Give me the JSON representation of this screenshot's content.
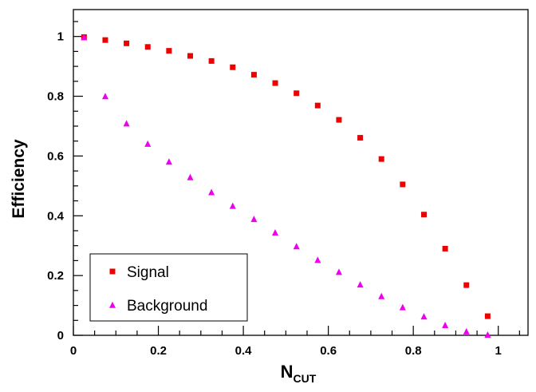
{
  "chart_data": {
    "type": "scatter",
    "xlabel_main": "N",
    "xlabel_sub": "CUT",
    "ylabel": "Efficiency",
    "xlim": [
      0,
      1.07
    ],
    "ylim": [
      0,
      1.09
    ],
    "x_ticks": [
      "0",
      "0.2",
      "0.4",
      "0.6",
      "0.8",
      "1"
    ],
    "y_ticks": [
      "0",
      "0.2",
      "0.4",
      "0.6",
      "0.8",
      "1"
    ],
    "legend_position": "bottom-left",
    "series": [
      {
        "name": "Signal",
        "marker": "square",
        "color": "#ee0000",
        "x": [
          0.025,
          0.075,
          0.125,
          0.175,
          0.225,
          0.275,
          0.325,
          0.375,
          0.425,
          0.475,
          0.525,
          0.575,
          0.625,
          0.675,
          0.725,
          0.775,
          0.825,
          0.875,
          0.925,
          0.975
        ],
        "y": [
          0.998,
          0.988,
          0.977,
          0.965,
          0.952,
          0.935,
          0.918,
          0.897,
          0.872,
          0.844,
          0.81,
          0.769,
          0.721,
          0.661,
          0.59,
          0.505,
          0.404,
          0.29,
          0.168,
          0.064
        ]
      },
      {
        "name": "Background",
        "marker": "triangle",
        "color": "#ee00ee",
        "x": [
          0.025,
          0.075,
          0.125,
          0.175,
          0.225,
          0.275,
          0.325,
          0.375,
          0.425,
          0.475,
          0.525,
          0.575,
          0.625,
          0.675,
          0.725,
          0.775,
          0.825,
          0.875,
          0.925,
          0.975
        ],
        "y": [
          0.997,
          0.8,
          0.709,
          0.641,
          0.581,
          0.529,
          0.479,
          0.433,
          0.389,
          0.344,
          0.298,
          0.252,
          0.212,
          0.17,
          0.131,
          0.094,
          0.063,
          0.034,
          0.013,
          0.002
        ]
      }
    ]
  }
}
